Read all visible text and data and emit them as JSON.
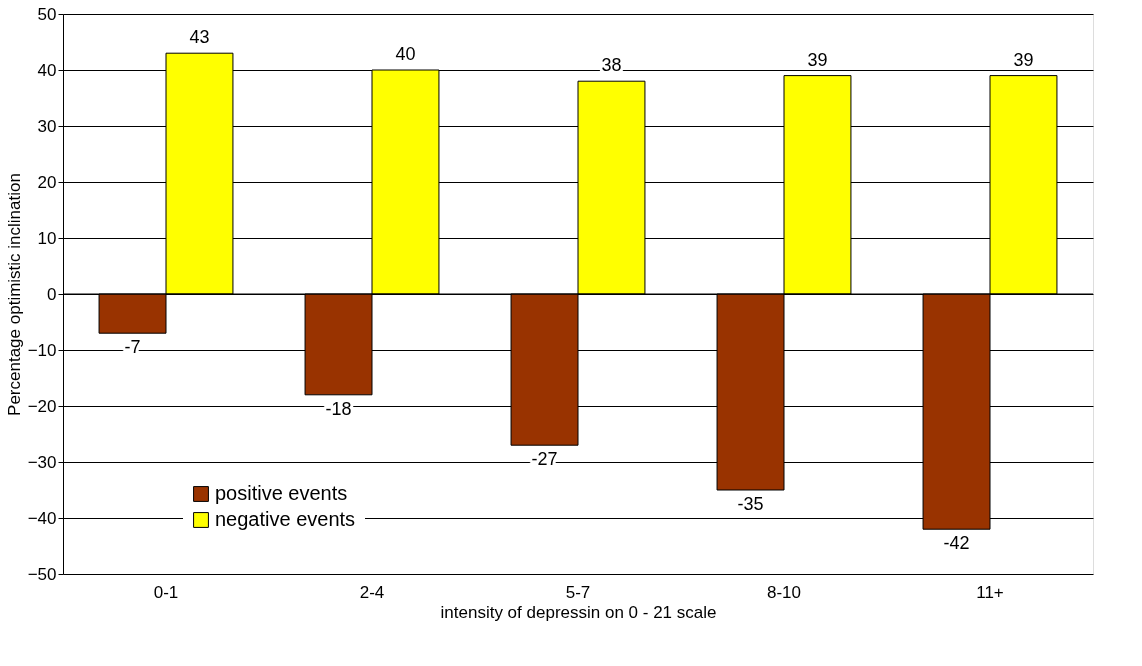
{
  "chart_data": {
    "type": "bar",
    "xlabel": "intensity of depressin on 0 - 21 scale",
    "ylabel": "Percentage optimistic inclination",
    "categories": [
      "0-1",
      "2-4",
      "5-7",
      "8-10",
      "11+"
    ],
    "series": [
      {
        "name": "positive events",
        "color": "#993300",
        "values": [
          -7,
          -18,
          -27,
          -35,
          -42
        ]
      },
      {
        "name": "negative events",
        "color": "#ffff00",
        "values": [
          43,
          40,
          38,
          39,
          39
        ]
      }
    ],
    "ylim": [
      -50,
      50
    ],
    "yticks": [
      -50,
      -40,
      -30,
      -20,
      -10,
      0,
      10,
      20,
      30,
      40,
      50
    ],
    "grid": "y",
    "legend": "bottom left",
    "data_labels": true
  }
}
